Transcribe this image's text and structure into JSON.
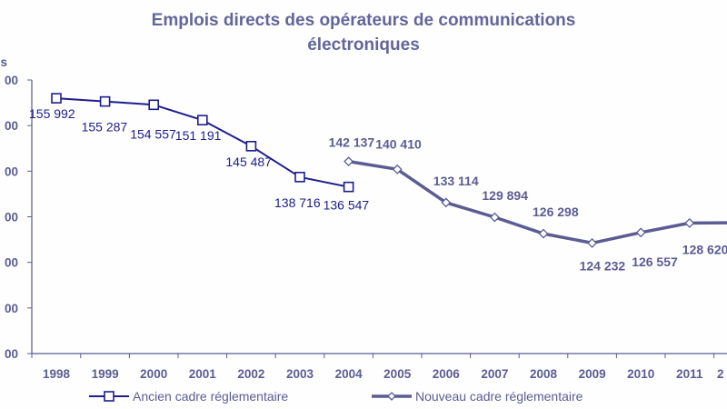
{
  "chart_data": {
    "type": "line",
    "title_line1": "Emplois directs des opérateurs de communications",
    "title_line2": "électroniques",
    "ylabel_fragment": "s",
    "ytick_labels": [
      "00",
      "00",
      "00",
      "00",
      "00",
      "00",
      "00"
    ],
    "ytick_values": [
      160000,
      150000,
      140000,
      130000,
      120000,
      110000,
      100000
    ],
    "ylim": [
      100000,
      160000
    ],
    "x": [
      "1998",
      "1999",
      "2000",
      "2001",
      "2002",
      "2003",
      "2004",
      "2005",
      "2006",
      "2007",
      "2008",
      "2009",
      "2010",
      "2011",
      "2"
    ],
    "grid": false,
    "legend_position": "bottom",
    "series": [
      {
        "name": "Ancien cadre réglementaire",
        "color": "#1e1e8c",
        "marker": "square",
        "points": [
          {
            "x": "1998",
            "y": 155992,
            "label": "155 992"
          },
          {
            "x": "1999",
            "y": 155287,
            "label": "155 287"
          },
          {
            "x": "2000",
            "y": 154557,
            "label": "154 557"
          },
          {
            "x": "2001",
            "y": 151191,
            "label": "151 191"
          },
          {
            "x": "2002",
            "y": 145487,
            "label": "145 487"
          },
          {
            "x": "2003",
            "y": 138716,
            "label": "138 716"
          },
          {
            "x": "2004",
            "y": 136547,
            "label": "136 547"
          }
        ]
      },
      {
        "name": "Nouveau cadre réglementaire",
        "color": "#5c5c93",
        "marker": "diamond",
        "points": [
          {
            "x": "2004",
            "y": 142137,
            "label": "142 137"
          },
          {
            "x": "2005",
            "y": 140410,
            "label": "140 410"
          },
          {
            "x": "2006",
            "y": 133114,
            "label": "133 114"
          },
          {
            "x": "2007",
            "y": 129894,
            "label": "129 894"
          },
          {
            "x": "2008",
            "y": 126298,
            "label": "126 298"
          },
          {
            "x": "2009",
            "y": 124232,
            "label": "124 232"
          },
          {
            "x": "2010",
            "y": 126557,
            "label": "126 557"
          },
          {
            "x": "2011",
            "y": 128620,
            "label": "128 620"
          },
          {
            "x": "2",
            "y": 128700,
            "label": "12"
          }
        ]
      }
    ]
  }
}
